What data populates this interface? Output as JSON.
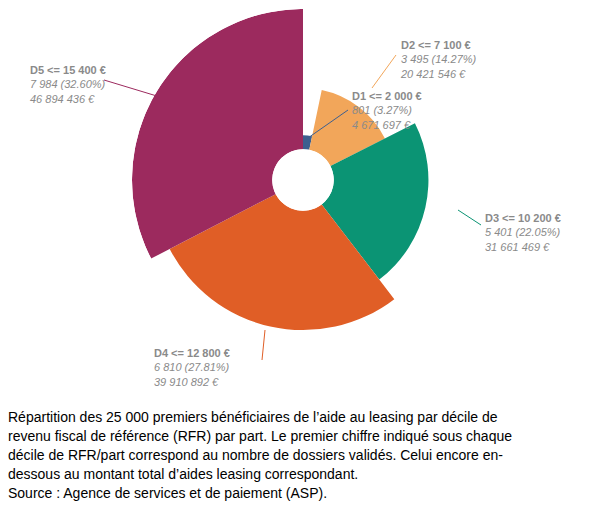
{
  "chart_data": {
    "type": "pie",
    "categories": [
      "D1 <= 2 000 €",
      "D2 <= 7 100 €",
      "D3 <= 10 200 €",
      "D4 <= 12 800 €",
      "D5 <= 15 400 €"
    ],
    "values": [
      801,
      3495,
      5401,
      6810,
      7984
    ],
    "value_labels": [
      "801 (3.27%)",
      "3 495 (14.27%)",
      "5 401 (22.05%)",
      "6 810 (27.81%)",
      "7 984 (32.60%)"
    ],
    "amounts": [
      4671697,
      20421546,
      31661469,
      39910892,
      46894436
    ],
    "amount_labels": [
      "4 671 697 €",
      "20 421 546 €",
      "31 661 469 €",
      "39 910 892 €",
      "46 894 436 €"
    ],
    "colors": [
      "#3d5f8f",
      "#f2a65a",
      "#0b9474",
      "#e05e26",
      "#9c2a5e"
    ],
    "tick_labels": false,
    "caption": [
      "Répartition des 25 000 premiers bénéficiaires de l’aide au leasing par décile de",
      "revenu fiscal de référence (RFR) par part. Le premier chiffre indiqué sous chaque",
      "décile de RFR/part correspond au nombre de dossiers validés. Celui encore en-",
      "dessous au montant total d’aides leasing correspondant.",
      "Source : Agence de services et de paiement (ASP)."
    ]
  }
}
